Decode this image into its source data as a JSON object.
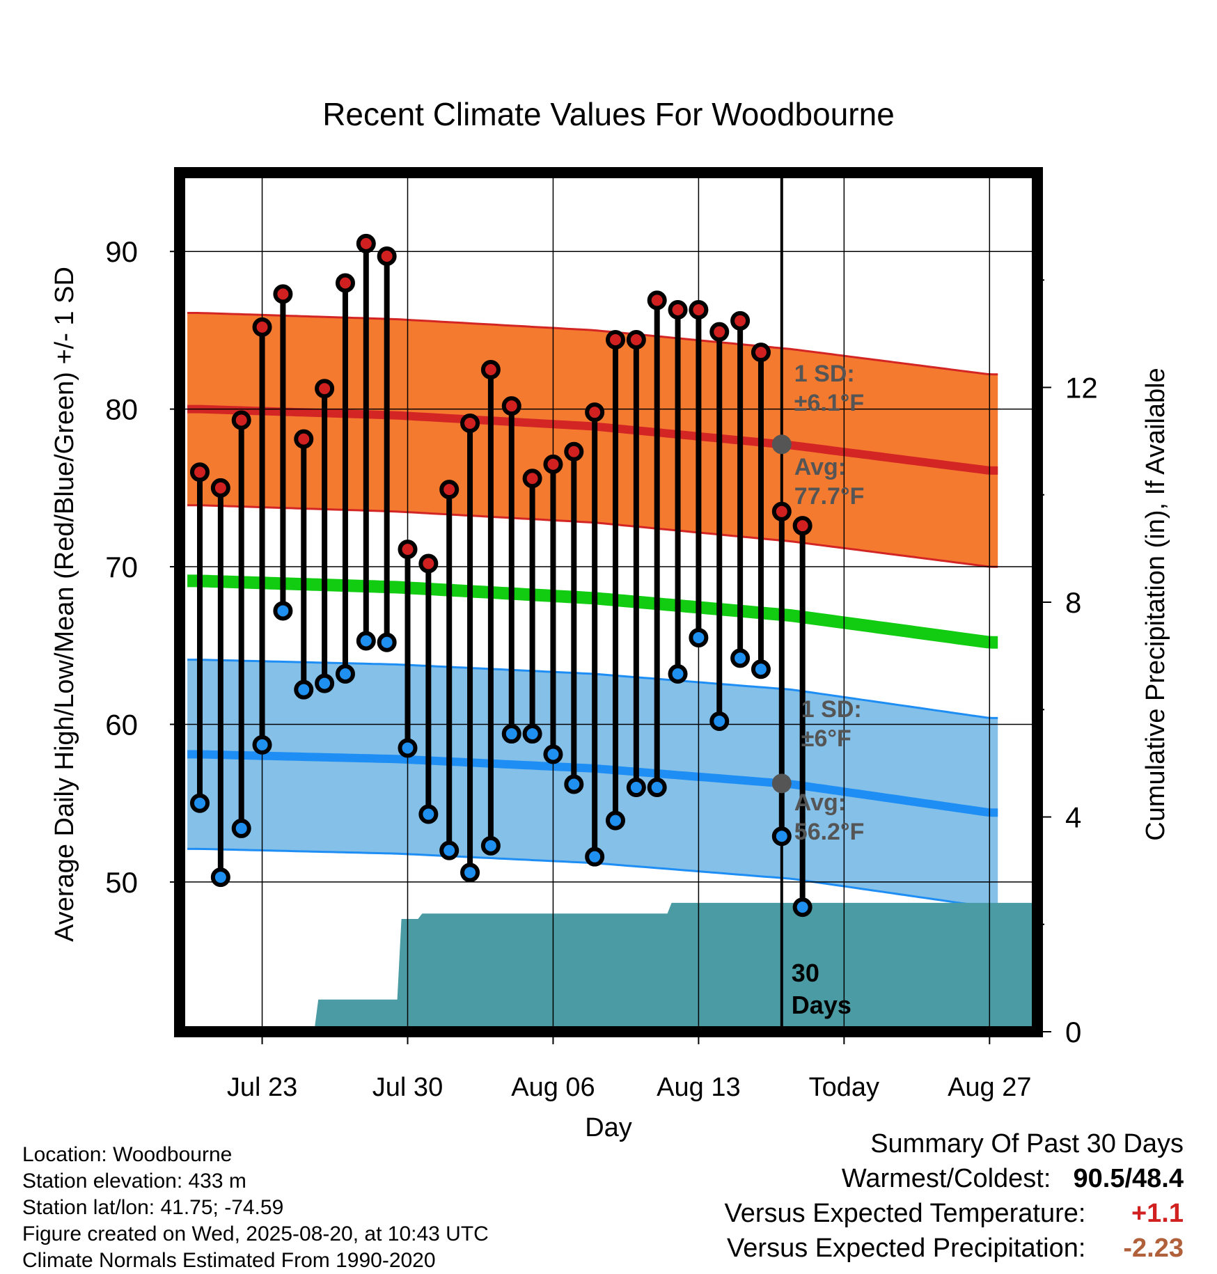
{
  "chart_data": {
    "type": "line",
    "title": "Recent Climate Values For Woodbourne",
    "xlabel": "Day",
    "ylabel": "Average Daily High/Low/Mean (Red/Blue/Green) +/- 1 SD",
    "y2label": "Cumulative Precipitation (in), If Available",
    "ylim": [
      40.5,
      95
    ],
    "y2lim": [
      0,
      16
    ],
    "x_ticks": [
      "Jul 23",
      "Jul 30",
      "Aug 06",
      "Aug 13",
      "Today",
      "Aug 27"
    ],
    "y_ticks": [
      50,
      60,
      70,
      80,
      90
    ],
    "y2_ticks": [
      0,
      4,
      8,
      12
    ],
    "today_index": 28,
    "days": 39,
    "grid": true,
    "series": [
      {
        "name": "High",
        "color": "#d02020",
        "values": [
          76.0,
          75.0,
          79.3,
          85.2,
          87.3,
          78.1,
          81.3,
          88.0,
          90.5,
          89.7,
          71.1,
          70.2,
          74.9,
          79.1,
          82.5,
          80.2,
          75.6,
          76.5,
          77.3,
          79.8,
          84.4,
          84.4,
          86.9,
          86.3,
          86.3,
          84.9,
          85.6,
          83.6,
          73.5,
          72.6
        ]
      },
      {
        "name": "Low",
        "color": "#2090f0",
        "values": [
          55.0,
          50.3,
          53.4,
          58.7,
          67.2,
          62.2,
          62.6,
          63.2,
          65.3,
          65.2,
          58.5,
          54.3,
          52.0,
          50.6,
          52.3,
          59.4,
          59.4,
          58.1,
          56.2,
          51.6,
          53.9,
          56.0,
          56.0,
          63.2,
          65.5,
          60.2,
          64.2,
          63.5,
          52.9,
          48.4
        ]
      }
    ],
    "normals": {
      "high_mean": [
        80.0,
        79.6,
        78.9,
        77.7,
        76.1
      ],
      "high_sd": 6.1,
      "low_mean": [
        58.1,
        57.8,
        57.2,
        56.2,
        54.4
      ],
      "low_sd": 6,
      "mean": [
        69.1,
        68.7,
        68.0,
        66.9,
        65.2
      ]
    },
    "precip_cumulative": [
      0,
      0,
      0,
      0,
      0,
      0,
      0.6,
      0.6,
      0.6,
      0.6,
      2.1,
      2.2,
      2.2,
      2.2,
      2.2,
      2.2,
      2.2,
      2.2,
      2.2,
      2.2,
      2.2,
      2.2,
      2.2,
      2.4,
      2.4,
      2.4,
      2.4,
      2.4,
      2.4,
      2.4
    ],
    "annotations": {
      "high_sd_label": "1 SD:",
      "high_sd_value": "±6.1°F",
      "high_avg_label": "Avg:",
      "high_avg_value": "77.7°F",
      "low_sd_label": "1 SD:",
      "low_sd_value": "±6°F",
      "low_avg_label": "Avg:",
      "low_avg_value": "56.2°F",
      "window_line1": "30",
      "window_line2": "Days"
    },
    "colors": {
      "high_band": "#f47a30",
      "high_line": "#d42525",
      "low_band": "#84c0e8",
      "low_line": "#1e8ef5",
      "mean_line": "#12cc12",
      "precip": "#4a9ba3",
      "avg_marker": "#555555"
    }
  },
  "info": {
    "location": "Location: Woodbourne",
    "elevation": "Station elevation: 433 m",
    "latlon": "Station lat/lon: 41.75; -74.59",
    "created": "Figure created on Wed, 2025-08-20, at 10:43 UTC",
    "normals": "Climate Normals Estimated From 1990-2020"
  },
  "summary": {
    "title": "Summary Of Past 30 Days",
    "warm_cold_label": "Warmest/Coldest:",
    "warm_cold_value": "90.5/48.4",
    "temp_label": "Versus Expected Temperature:",
    "temp_value": "+1.1",
    "precip_label": "Versus Expected Precipitation:",
    "precip_value": "-2.23"
  }
}
